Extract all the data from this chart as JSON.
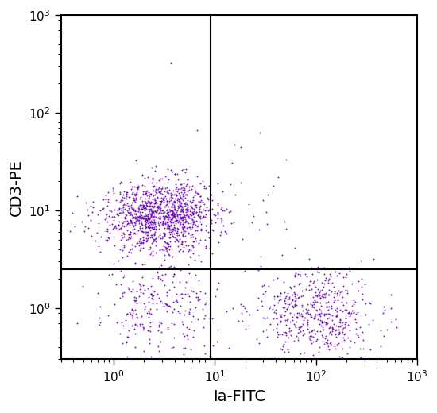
{
  "xlabel": "Ia-FITC",
  "ylabel": "CD3-PE",
  "xmin": 0.3,
  "xmax": 1000,
  "ymin": 0.3,
  "ymax": 1000,
  "dot_color": "#6600AA",
  "dot_alpha": 0.85,
  "dot_size": 2.0,
  "quadrant_x": 9.0,
  "quadrant_y": 2.5,
  "background_color": "#ffffff",
  "clusters": [
    {
      "name": "upper_left_main",
      "center_x_log": 0.45,
      "center_y_log": 0.95,
      "spread_x": 0.28,
      "spread_y": 0.18,
      "n_points": 1200
    },
    {
      "name": "lower_left",
      "center_x_log": 0.42,
      "center_y_log": -0.02,
      "spread_x": 0.3,
      "spread_y": 0.28,
      "n_points": 280
    },
    {
      "name": "lower_right",
      "center_x_log": 1.98,
      "center_y_log": -0.08,
      "spread_x": 0.28,
      "spread_y": 0.22,
      "n_points": 550
    },
    {
      "name": "upper_right_sparse",
      "center_x_log": 1.3,
      "center_y_log": 1.1,
      "spread_x": 0.35,
      "spread_y": 0.3,
      "n_points": 18
    }
  ],
  "outliers": [
    {
      "x_log": 0.85,
      "y_log": 1.85,
      "n": 1
    },
    {
      "x_log": 0.5,
      "y_log": 2.5,
      "n": 1
    }
  ],
  "xlabel_fontsize": 14,
  "ylabel_fontsize": 14,
  "tick_labelsize": 11,
  "figsize": [
    5.5,
    5.2
  ],
  "dpi": 100
}
